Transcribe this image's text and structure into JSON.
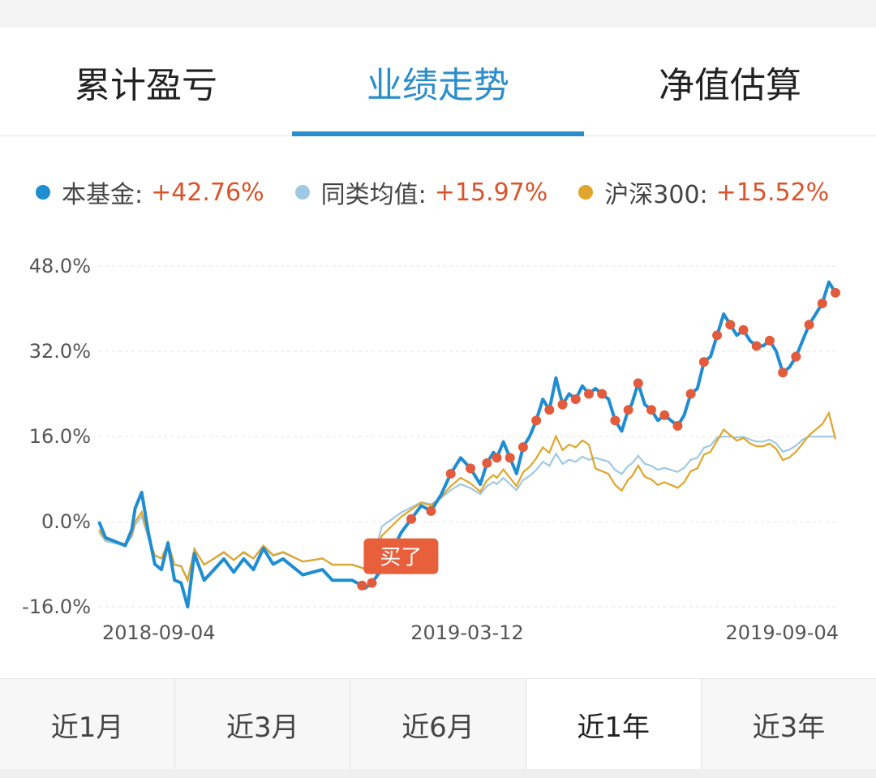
{
  "tabs": [
    {
      "label": "累计盈亏",
      "active": false
    },
    {
      "label": "业绩走势",
      "active": true
    },
    {
      "label": "净值估算",
      "active": false
    }
  ],
  "legend": [
    {
      "name": "本基金:",
      "value": "+42.76%",
      "color": "#1f8dd1"
    },
    {
      "name": "同类均值:",
      "value": "+15.97%",
      "color": "#9ec9e2"
    },
    {
      "name": "沪深300:",
      "value": "+15.52%",
      "color": "#e0a52b"
    }
  ],
  "periods": [
    {
      "label": "近1月",
      "active": false
    },
    {
      "label": "近3月",
      "active": false
    },
    {
      "label": "近6月",
      "active": false
    },
    {
      "label": "近1年",
      "active": true
    },
    {
      "label": "近3年",
      "active": false
    }
  ],
  "colors": {
    "accent": "#2a8ecb",
    "positive": "#d9532b",
    "trade_marker": "#e25b3d"
  },
  "chart_data": {
    "type": "line",
    "ylim": [
      -16,
      48
    ],
    "y_ticks": [
      "48.0%",
      "32.0%",
      "16.0%",
      "0.0%",
      "-16.0%"
    ],
    "y_tick_values": [
      48,
      32,
      16,
      0,
      -16
    ],
    "x_ticks": [
      "2018-09-04",
      "2019-03-12",
      "2019-09-04"
    ],
    "x_tick_positions": [
      0,
      0.5,
      1
    ],
    "annotation": "买了",
    "grid": true,
    "legend_placement": "top",
    "series": [
      {
        "name": "本基金",
        "color": "#1f8dd1",
        "points": [
          [
            0,
            0
          ],
          [
            0.01,
            -3
          ],
          [
            0.02,
            -3.5
          ],
          [
            0.03,
            -4
          ],
          [
            0.04,
            -4.5
          ],
          [
            0.05,
            -1.5
          ],
          [
            0.055,
            2.5
          ],
          [
            0.065,
            5.5
          ],
          [
            0.075,
            -2
          ],
          [
            0.085,
            -8
          ],
          [
            0.095,
            -9
          ],
          [
            0.105,
            -4
          ],
          [
            0.115,
            -11
          ],
          [
            0.125,
            -11.5
          ],
          [
            0.135,
            -16
          ],
          [
            0.145,
            -6
          ],
          [
            0.16,
            -11
          ],
          [
            0.175,
            -9
          ],
          [
            0.19,
            -7
          ],
          [
            0.205,
            -9.5
          ],
          [
            0.22,
            -7
          ],
          [
            0.235,
            -9
          ],
          [
            0.25,
            -5
          ],
          [
            0.265,
            -8
          ],
          [
            0.28,
            -7
          ],
          [
            0.295,
            -8.5
          ],
          [
            0.31,
            -10
          ],
          [
            0.325,
            -9.5
          ],
          [
            0.34,
            -9
          ],
          [
            0.355,
            -11
          ],
          [
            0.37,
            -11
          ],
          [
            0.385,
            -11
          ],
          [
            0.4,
            -12
          ],
          [
            0.405,
            -12.5
          ],
          [
            0.415,
            -11.5
          ],
          [
            0.43,
            -9
          ],
          [
            0.445,
            -5.5
          ],
          [
            0.46,
            -2
          ],
          [
            0.475,
            0.5
          ],
          [
            0.49,
            3
          ],
          [
            0.505,
            2
          ],
          [
            0.52,
            5
          ],
          [
            0.535,
            9
          ],
          [
            0.55,
            12
          ],
          [
            0.565,
            10
          ],
          [
            0.58,
            7
          ],
          [
            0.59,
            11
          ],
          [
            0.6,
            13
          ],
          [
            0.605,
            12
          ],
          [
            0.615,
            15
          ],
          [
            0.625,
            12
          ],
          [
            0.635,
            9
          ],
          [
            0.645,
            14
          ],
          [
            0.655,
            16
          ],
          [
            0.665,
            19
          ],
          [
            0.675,
            23
          ],
          [
            0.685,
            21
          ],
          [
            0.695,
            27
          ],
          [
            0.705,
            22
          ],
          [
            0.715,
            24
          ],
          [
            0.725,
            23
          ],
          [
            0.735,
            25.5
          ],
          [
            0.745,
            24
          ],
          [
            0.755,
            25
          ],
          [
            0.765,
            24
          ],
          [
            0.775,
            23
          ],
          [
            0.785,
            19
          ],
          [
            0.795,
            17
          ],
          [
            0.805,
            21
          ],
          [
            0.81,
            22
          ],
          [
            0.82,
            26
          ],
          [
            0.83,
            22
          ],
          [
            0.84,
            21
          ],
          [
            0.85,
            19
          ],
          [
            0.86,
            20
          ],
          [
            0.87,
            19
          ],
          [
            0.88,
            18
          ],
          [
            0.89,
            20
          ],
          [
            0.9,
            24
          ],
          [
            0.91,
            25
          ],
          [
            0.92,
            30
          ],
          [
            0.93,
            31
          ],
          [
            0.94,
            35
          ],
          [
            0.95,
            39
          ],
          [
            0.96,
            37
          ],
          [
            0.97,
            35
          ],
          [
            0.98,
            36
          ],
          [
            0.99,
            34
          ],
          [
            1.0,
            33
          ]
        ],
        "points_tail": [
          [
            1.01,
            33
          ],
          [
            1.02,
            34
          ],
          [
            1.03,
            32
          ],
          [
            1.04,
            28
          ],
          [
            1.05,
            29
          ],
          [
            1.06,
            31
          ],
          [
            1.07,
            34
          ],
          [
            1.08,
            37
          ],
          [
            1.09,
            39
          ],
          [
            1.1,
            41
          ],
          [
            1.11,
            45
          ],
          [
            1.12,
            43
          ]
        ]
      },
      {
        "name": "同类均值",
        "color": "#9ec9e2"
      },
      {
        "name": "沪深300",
        "color": "#e0a52b"
      }
    ]
  }
}
